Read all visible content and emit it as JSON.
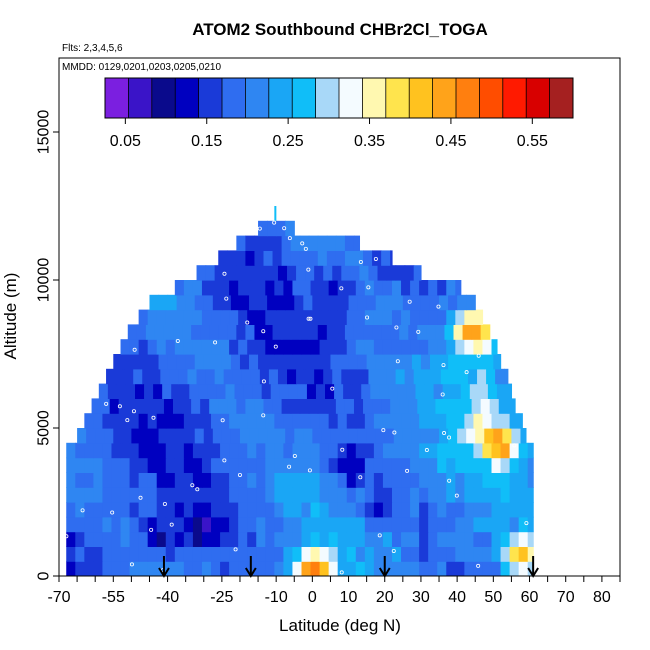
{
  "chart_data": {
    "type": "heatmap",
    "title": "ATOM2 Southbound CHBr2Cl_TOGA",
    "flights_label": "Flts: 2,3,4,5,6",
    "dates_label": "MMDD: 0129,0201,0203,0205,0210",
    "xlabel": "Latitude (deg N)",
    "ylabel": "Altitude (m)",
    "xlim": [
      -70,
      85
    ],
    "ylim": [
      0,
      17500
    ],
    "x_ticks": [
      -70,
      -55,
      -40,
      -25,
      -10,
      0,
      10,
      20,
      30,
      40,
      50,
      60,
      70,
      80
    ],
    "x_tick_labels": [
      "-70",
      "-55",
      "-40",
      "-25",
      "-10",
      "0",
      "10",
      "20",
      "30",
      "40",
      "50",
      "60",
      "70",
      "80"
    ],
    "y_ticks": [
      0,
      5000,
      10000,
      15000
    ],
    "y_tick_labels": [
      "0",
      "5000",
      "10000",
      "15000"
    ],
    "colorbar": {
      "min": 0.025,
      "max": 0.6,
      "tick_values": [
        0.05,
        0.15,
        0.25,
        0.35,
        0.45,
        0.55
      ],
      "tick_labels": [
        "0.05",
        "0.15",
        "0.25",
        "0.35",
        "0.45",
        "0.55"
      ],
      "colors": [
        "#7b1fe0",
        "#3a14c8",
        "#0a0a8c",
        "#0000c0",
        "#1a3ad8",
        "#2f6df0",
        "#2f86f2",
        "#1aa6f5",
        "#10bef8",
        "#a8d8f8",
        "#f4fbff",
        "#fff8b0",
        "#ffe44d",
        "#ffc21f",
        "#ffa31a",
        "#ff7f0f",
        "#ff4d00",
        "#ff1a00",
        "#d80000",
        "#a52020"
      ]
    },
    "flight_markers_lat": [
      -41,
      -17,
      20,
      61
    ],
    "envelope": [
      {
        "alt": 250,
        "lat_min": -68,
        "lat_max": 61
      },
      {
        "alt": 750,
        "lat_min": -68,
        "lat_max": 61
      },
      {
        "alt": 1250,
        "lat_min": -68,
        "lat_max": 61
      },
      {
        "alt": 1750,
        "lat_min": -68,
        "lat_max": 61
      },
      {
        "alt": 2250,
        "lat_min": -68,
        "lat_max": 61
      },
      {
        "alt": 2750,
        "lat_min": -68,
        "lat_max": 61
      },
      {
        "alt": 3250,
        "lat_min": -68,
        "lat_max": 61
      },
      {
        "alt": 3750,
        "lat_min": -68,
        "lat_max": 61
      },
      {
        "alt": 4250,
        "lat_min": -68,
        "lat_max": 61
      },
      {
        "alt": 4750,
        "lat_min": -65,
        "lat_max": 59
      },
      {
        "alt": 5250,
        "lat_min": -63,
        "lat_max": 58
      },
      {
        "alt": 5750,
        "lat_min": -61,
        "lat_max": 56
      },
      {
        "alt": 6250,
        "lat_min": -59,
        "lat_max": 55
      },
      {
        "alt": 6750,
        "lat_min": -57,
        "lat_max": 54
      },
      {
        "alt": 7250,
        "lat_min": -55,
        "lat_max": 52
      },
      {
        "alt": 7750,
        "lat_min": -53,
        "lat_max": 51
      },
      {
        "alt": 8250,
        "lat_min": -51,
        "lat_max": 49
      },
      {
        "alt": 8750,
        "lat_min": -48,
        "lat_max": 47
      },
      {
        "alt": 9250,
        "lat_min": -45,
        "lat_max": 45
      },
      {
        "alt": 9750,
        "lat_min": -38,
        "lat_max": 41
      },
      {
        "alt": 10250,
        "lat_min": -32,
        "lat_max": 30
      },
      {
        "alt": 10750,
        "lat_min": -26,
        "lat_max": 22
      },
      {
        "alt": 11250,
        "lat_min": -21,
        "lat_max": 13
      },
      {
        "alt": 11750,
        "lat_min": -15,
        "lat_max": -5
      }
    ],
    "features": [
      {
        "lat": -42,
        "alt": 1300,
        "value": 0.12
      },
      {
        "lat": -30,
        "alt": 1600,
        "value": 0.12
      },
      {
        "lat": 18,
        "alt": 2400,
        "value": 0.14
      },
      {
        "lat": 10,
        "alt": 3700,
        "value": 0.12
      },
      {
        "lat": 7,
        "alt": 9500,
        "value": 0.13
      },
      {
        "lat": 25,
        "alt": 7800,
        "value": 0.14
      },
      {
        "lat": 44,
        "alt": 8300,
        "value": 0.44
      },
      {
        "lat": 52,
        "alt": 4500,
        "value": 0.42
      },
      {
        "lat": 0,
        "alt": 250,
        "value": 0.44
      },
      {
        "lat": 58,
        "alt": 700,
        "value": 0.42
      }
    ]
  }
}
